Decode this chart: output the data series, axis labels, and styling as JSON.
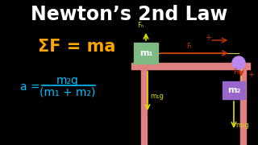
{
  "bg_color": "#000000",
  "title": "Newton’s 2nd Law",
  "title_color": "#ffffff",
  "title_fontsize": 17,
  "eq1_text": "ΣF = ma",
  "eq1_color": "#ffa500",
  "eq1_fontsize": 15,
  "eq2_color": "#00bfff",
  "eq2_fontsize": 10,
  "eq2_num": "m₂g",
  "eq2_den": "(m₁ + m₂)",
  "table_color": "#e08080",
  "m1_box_color": "#7dba84",
  "m1_label": "m₁",
  "m2_box_color": "#9966cc",
  "m2_label": "m₂",
  "pulley_color": "#bb88ee",
  "fn_arrow_color": "#dddd00",
  "fn_label": "Fₙ",
  "ft_arrow_color": "#cc3300",
  "ft_label": "Fₜ",
  "m1g_label": "m₁g",
  "m2g_label": "m₂g",
  "yellow": "#dddd00",
  "red": "#cc3300",
  "white": "#ffffff"
}
